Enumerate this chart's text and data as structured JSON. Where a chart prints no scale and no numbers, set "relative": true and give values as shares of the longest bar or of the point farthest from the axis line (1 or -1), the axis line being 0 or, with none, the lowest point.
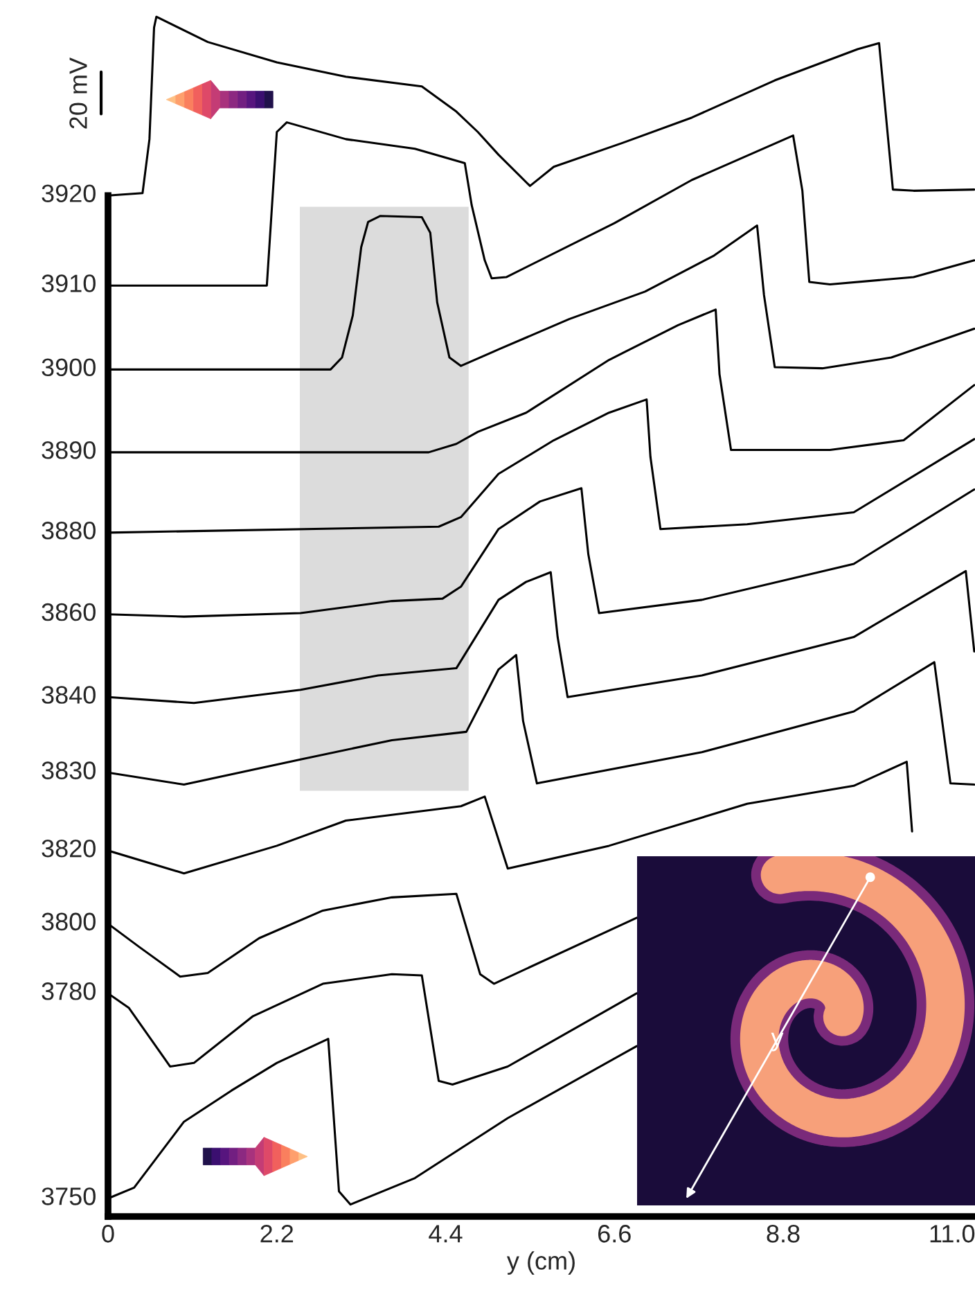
{
  "chart_data": {
    "type": "line",
    "relative": true,
    "xlabel": "y (cm)",
    "annotations": [
      "20 mV",
      "y",
      "3920",
      "3910",
      "3900",
      "3890",
      "3880",
      "3860",
      "3840",
      "3830",
      "3820",
      "3800",
      "3780",
      "3750"
    ],
    "xlim": [
      0,
      11.3
    ],
    "xticks": [
      0,
      2.2,
      4.4,
      6.6,
      8.8,
      {
        "value": 11.0,
        "label": "11.0"
      }
    ],
    "bands": [
      {
        "axis": "x",
        "from": 2.5,
        "to": 4.7,
        "color": "#dcdcdc"
      }
    ],
    "grid": false,
    "legend": false,
    "line_style": "solid",
    "marker": "none",
    "series": [
      {
        "color": "#000000",
        "x": [
          0,
          0.45,
          0.54,
          0.6,
          0.63,
          1.3,
          2.2,
          3.1,
          4.09,
          4.54,
          4.82,
          5.09,
          5.5,
          5.81,
          6.71,
          7.61,
          8.69,
          9.77,
          10.05,
          10.23,
          10.5,
          11.29
        ],
        "values": [
          0.851,
          0.853,
          0.898,
          0.991,
          1,
          0.979,
          0.962,
          0.95,
          0.942,
          0.921,
          0.904,
          0.885,
          0.859,
          0.875,
          0.895,
          0.916,
          0.947,
          0.973,
          0.978,
          0.856,
          0.855,
          0.856
        ]
      },
      {
        "color": "#000000",
        "x": [
          0,
          2.07,
          2.15,
          2.2,
          2.33,
          3.1,
          4.0,
          4.65,
          4.74,
          4.91,
          5.0,
          5.19,
          6.6,
          7.61,
          8.93,
          9.05,
          9.14,
          9.41,
          10.5,
          11.29
        ],
        "values": [
          0.776,
          0.776,
          0.855,
          0.904,
          0.912,
          0.898,
          0.89,
          0.878,
          0.843,
          0.797,
          0.782,
          0.783,
          0.828,
          0.864,
          0.901,
          0.855,
          0.779,
          0.777,
          0.783,
          0.797
        ]
      },
      {
        "color": "#000000",
        "x": [
          0,
          2.9,
          3.05,
          3.19,
          3.3,
          3.39,
          3.55,
          4.09,
          4.2,
          4.29,
          4.45,
          4.6,
          5.1,
          6.01,
          7.0,
          7.9,
          8.46,
          8.55,
          8.69,
          9.31,
          10.21,
          11.29
        ],
        "values": [
          0.706,
          0.706,
          0.716,
          0.751,
          0.808,
          0.829,
          0.834,
          0.833,
          0.82,
          0.762,
          0.716,
          0.709,
          0.723,
          0.748,
          0.771,
          0.801,
          0.826,
          0.768,
          0.708,
          0.707,
          0.716,
          0.74
        ]
      },
      {
        "color": "#000000",
        "x": [
          0,
          4.18,
          4.54,
          4.82,
          5.45,
          6.53,
          7.43,
          7.92,
          7.97,
          8.12,
          9.41,
          10.37,
          11.29
        ],
        "values": [
          0.637,
          0.637,
          0.644,
          0.654,
          0.67,
          0.714,
          0.743,
          0.756,
          0.702,
          0.639,
          0.639,
          0.647,
          0.693
        ]
      },
      {
        "color": "#000000",
        "x": [
          0,
          4.31,
          4.6,
          5.09,
          5.81,
          6.53,
          7.02,
          7.07,
          7.2,
          8.33,
          9.72,
          11.29
        ],
        "values": [
          0.57,
          0.575,
          0.583,
          0.619,
          0.647,
          0.67,
          0.681,
          0.633,
          0.573,
          0.577,
          0.587,
          0.648
        ]
      },
      {
        "color": "#000000",
        "x": [
          0,
          0.99,
          2.51,
          3.7,
          4.36,
          4.6,
          5.09,
          5.63,
          6.17,
          6.26,
          6.4,
          7.74,
          9.72,
          11.29
        ],
        "values": [
          0.502,
          0.5,
          0.503,
          0.513,
          0.515,
          0.525,
          0.573,
          0.596,
          0.607,
          0.552,
          0.503,
          0.514,
          0.544,
          0.606
        ]
      },
      {
        "color": "#000000",
        "x": [
          0,
          1.12,
          2.51,
          3.52,
          4.54,
          5.09,
          5.45,
          5.77,
          5.86,
          5.99,
          7.74,
          9.72,
          11.18,
          11.29
        ],
        "values": [
          0.433,
          0.428,
          0.439,
          0.451,
          0.457,
          0.514,
          0.529,
          0.537,
          0.483,
          0.433,
          0.451,
          0.483,
          0.538,
          0.471
        ]
      },
      {
        "color": "#000000",
        "x": [
          0,
          0.99,
          2.51,
          3.7,
          4.67,
          5.09,
          5.32,
          5.41,
          5.59,
          7.74,
          9.72,
          10.77,
          10.98,
          11.29
        ],
        "values": [
          0.37,
          0.36,
          0.381,
          0.397,
          0.404,
          0.456,
          0.468,
          0.413,
          0.361,
          0.387,
          0.421,
          0.462,
          0.361,
          0.36
        ]
      },
      {
        "color": "#000000",
        "x": [
          0,
          0.99,
          2.2,
          3.1,
          4.6,
          4.91,
          5.21,
          6.53,
          8.33,
          9.72,
          10.41,
          10.48
        ],
        "values": [
          0.305,
          0.286,
          0.309,
          0.33,
          0.342,
          0.35,
          0.29,
          0.309,
          0.344,
          0.359,
          0.379,
          0.321
        ]
      },
      {
        "color": "#000000",
        "x": [
          0,
          0.4,
          0.94,
          1.3,
          1.97,
          2.8,
          3.7,
          4.54,
          4.85,
          5.03,
          6.89
        ],
        "values": [
          0.244,
          0.225,
          0.2,
          0.203,
          0.232,
          0.255,
          0.266,
          0.269,
          0.202,
          0.194,
          0.249
        ]
      },
      {
        "color": "#000000",
        "x": [
          0,
          0.27,
          0.81,
          1.12,
          1.89,
          2.8,
          3.7,
          4.09,
          4.31,
          4.49,
          5.21,
          6.89
        ],
        "values": [
          0.186,
          0.174,
          0.125,
          0.128,
          0.167,
          0.194,
          0.202,
          0.201,
          0.113,
          0.11,
          0.125,
          0.186
        ]
      },
      {
        "color": "#000000",
        "x": [
          0,
          0.34,
          0.99,
          1.61,
          2.2,
          2.87,
          3.01,
          3.16,
          4.0,
          5.21,
          6.89
        ],
        "values": [
          0.015,
          0.024,
          0.079,
          0.105,
          0.128,
          0.148,
          0.021,
          0.01,
          0.032,
          0.082,
          0.142
        ]
      }
    ]
  }
}
